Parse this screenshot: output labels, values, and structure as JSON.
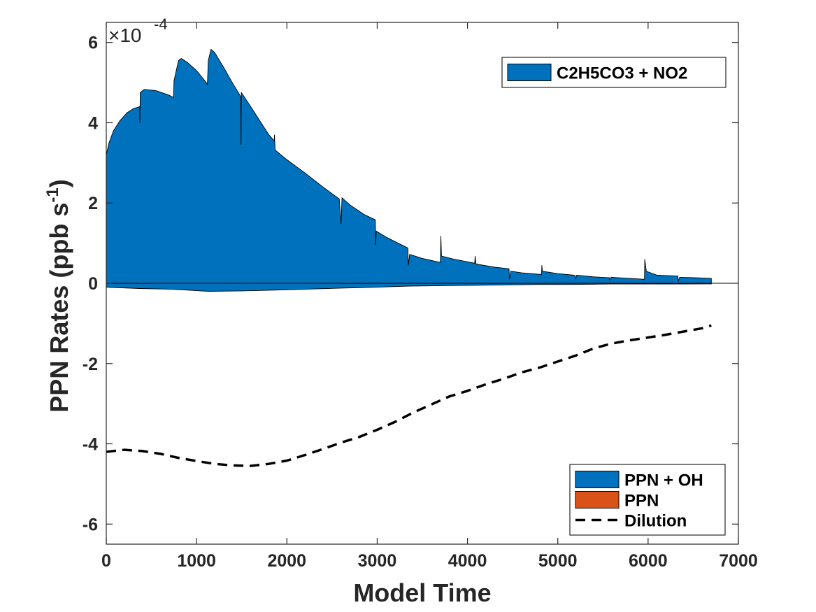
{
  "chart_data": {
    "type": "area",
    "xlabel": "Model Time",
    "ylabel": "PPN Rates (ppb s",
    "ylabel_superscript": "-1",
    "ylabel_suffix": ")",
    "y_multiplier": {
      "prefix": "×10",
      "exponent": "-4"
    },
    "xlim": [
      0,
      7000
    ],
    "ylim": [
      -6.5,
      6.5
    ],
    "x_ticks": [
      0,
      1000,
      2000,
      3000,
      4000,
      5000,
      6000,
      7000
    ],
    "x_tick_labels": [
      "0",
      "1000",
      "2000",
      "3000",
      "4000",
      "5000",
      "6000",
      "7000"
    ],
    "y_ticks": [
      -6,
      -4,
      -2,
      0,
      2,
      4,
      6
    ],
    "y_tick_labels": [
      "-6",
      "-4",
      "-2",
      "0",
      "2",
      "4",
      "6"
    ],
    "grid": false,
    "legends": [
      {
        "placement": "top-right",
        "entries": [
          "C2H5CO3 + NO2"
        ]
      },
      {
        "placement": "bottom-right",
        "entries": [
          "PPN + OH",
          "PPN",
          "Dilution"
        ]
      }
    ],
    "colors": {
      "blue": "#0072bd",
      "orange": "#d95319",
      "dilution": "#000000"
    },
    "series": [
      {
        "name": "C2H5CO3 + NO2",
        "style": "area",
        "color": "#0072bd",
        "points": [
          [
            0,
            3.2
          ],
          [
            30,
            3.5
          ],
          [
            80,
            3.8
          ],
          [
            150,
            4.05
          ],
          [
            230,
            4.25
          ],
          [
            300,
            4.35
          ],
          [
            370,
            4.4
          ],
          [
            372,
            4.0
          ],
          [
            376,
            4.75
          ],
          [
            420,
            4.83
          ],
          [
            550,
            4.8
          ],
          [
            680,
            4.7
          ],
          [
            745,
            4.63
          ],
          [
            750,
            5.05
          ],
          [
            800,
            5.55
          ],
          [
            830,
            5.6
          ],
          [
            900,
            5.5
          ],
          [
            1000,
            5.3
          ],
          [
            1100,
            5.02
          ],
          [
            1120,
            4.95
          ],
          [
            1130,
            5.55
          ],
          [
            1160,
            5.83
          ],
          [
            1200,
            5.75
          ],
          [
            1300,
            5.38
          ],
          [
            1400,
            4.98
          ],
          [
            1490,
            4.65
          ],
          [
            1492,
            3.45
          ],
          [
            1496,
            4.75
          ],
          [
            1600,
            4.4
          ],
          [
            1700,
            4.05
          ],
          [
            1800,
            3.7
          ],
          [
            1860,
            3.55
          ],
          [
            1862,
            3.7
          ],
          [
            1870,
            3.32
          ],
          [
            2000,
            3.08
          ],
          [
            2200,
            2.75
          ],
          [
            2400,
            2.4
          ],
          [
            2580,
            2.1
          ],
          [
            2600,
            1.48
          ],
          [
            2610,
            2.13
          ],
          [
            2700,
            1.95
          ],
          [
            2850,
            1.72
          ],
          [
            2980,
            1.58
          ],
          [
            2983,
            0.95
          ],
          [
            2990,
            1.3
          ],
          [
            3100,
            1.15
          ],
          [
            3250,
            0.98
          ],
          [
            3340,
            0.88
          ],
          [
            3345,
            0.45
          ],
          [
            3360,
            0.72
          ],
          [
            3500,
            0.62
          ],
          [
            3700,
            0.52
          ],
          [
            3705,
            1.18
          ],
          [
            3712,
            0.68
          ],
          [
            3850,
            0.6
          ],
          [
            4080,
            0.5
          ],
          [
            4085,
            0.68
          ],
          [
            4095,
            0.48
          ],
          [
            4300,
            0.4
          ],
          [
            4460,
            0.36
          ],
          [
            4465,
            0.1
          ],
          [
            4480,
            0.3
          ],
          [
            4600,
            0.26
          ],
          [
            4820,
            0.22
          ],
          [
            4823,
            0.45
          ],
          [
            4830,
            0.3
          ],
          [
            5000,
            0.24
          ],
          [
            5190,
            0.2
          ],
          [
            5195,
            0.1
          ],
          [
            5210,
            0.2
          ],
          [
            5400,
            0.16
          ],
          [
            5570,
            0.14
          ],
          [
            5573,
            0.08
          ],
          [
            5590,
            0.15
          ],
          [
            5800,
            0.12
          ],
          [
            5960,
            0.1
          ],
          [
            5963,
            0.6
          ],
          [
            5980,
            0.3
          ],
          [
            6100,
            0.2
          ],
          [
            6330,
            0.18
          ],
          [
            6333,
            0.05
          ],
          [
            6350,
            0.15
          ],
          [
            6500,
            0.14
          ],
          [
            6700,
            0.12
          ]
        ]
      },
      {
        "name": "PPN + OH",
        "style": "area",
        "color": "#0072bd",
        "points": [
          [
            0,
            -0.1
          ],
          [
            370,
            -0.13
          ],
          [
            745,
            -0.15
          ],
          [
            1130,
            -0.2
          ],
          [
            1500,
            -0.19
          ],
          [
            1860,
            -0.17
          ],
          [
            2600,
            -0.12
          ],
          [
            2980,
            -0.1
          ],
          [
            3345,
            -0.07
          ],
          [
            3705,
            -0.06
          ],
          [
            4080,
            -0.05
          ],
          [
            4460,
            -0.04
          ],
          [
            4820,
            -0.03
          ],
          [
            5190,
            -0.03
          ],
          [
            5570,
            -0.02
          ],
          [
            5960,
            -0.02
          ],
          [
            6330,
            -0.02
          ],
          [
            6700,
            -0.015
          ]
        ]
      },
      {
        "name": "PPN",
        "style": "area",
        "color": "#d95319",
        "points": [
          [
            0,
            0
          ],
          [
            6700,
            0
          ]
        ]
      },
      {
        "name": "Dilution",
        "style": "dashed-line",
        "color": "#000000",
        "points": [
          [
            0,
            -4.2
          ],
          [
            200,
            -4.15
          ],
          [
            400,
            -4.18
          ],
          [
            600,
            -4.25
          ],
          [
            800,
            -4.35
          ],
          [
            1000,
            -4.43
          ],
          [
            1200,
            -4.5
          ],
          [
            1400,
            -4.54
          ],
          [
            1600,
            -4.55
          ],
          [
            1800,
            -4.5
          ],
          [
            2000,
            -4.42
          ],
          [
            2200,
            -4.28
          ],
          [
            2400,
            -4.13
          ],
          [
            2600,
            -3.97
          ],
          [
            2800,
            -3.83
          ],
          [
            3000,
            -3.65
          ],
          [
            3200,
            -3.45
          ],
          [
            3400,
            -3.22
          ],
          [
            3600,
            -3.02
          ],
          [
            3800,
            -2.82
          ],
          [
            4000,
            -2.68
          ],
          [
            4200,
            -2.52
          ],
          [
            4400,
            -2.38
          ],
          [
            4600,
            -2.22
          ],
          [
            4800,
            -2.1
          ],
          [
            5000,
            -1.95
          ],
          [
            5200,
            -1.8
          ],
          [
            5400,
            -1.62
          ],
          [
            5600,
            -1.5
          ],
          [
            5800,
            -1.42
          ],
          [
            6000,
            -1.35
          ],
          [
            6200,
            -1.28
          ],
          [
            6400,
            -1.2
          ],
          [
            6600,
            -1.12
          ],
          [
            6700,
            -1.05
          ]
        ]
      }
    ]
  }
}
